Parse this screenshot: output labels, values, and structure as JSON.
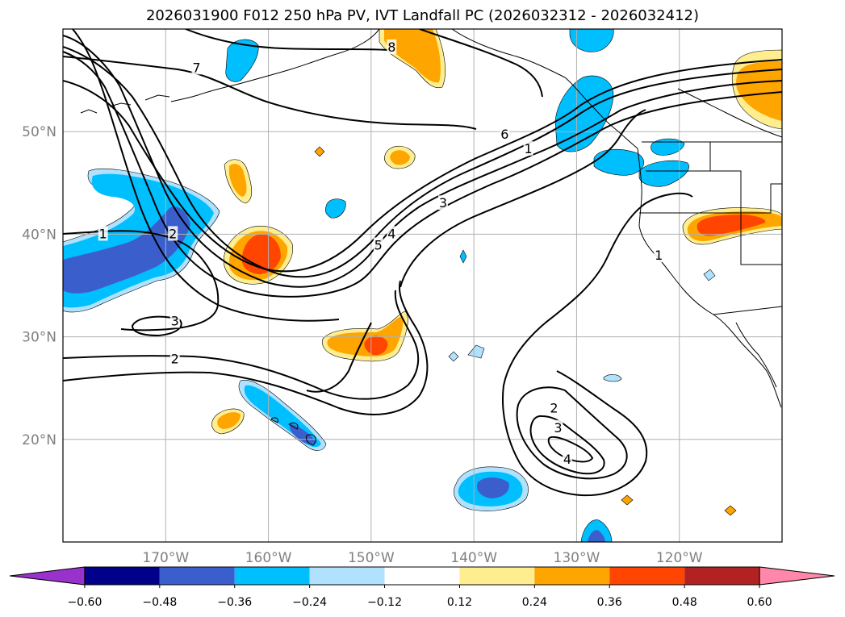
{
  "title": "2026031900 F012 250 hPa PV, IVT Landfall PC (2026032312 - 2026032412)",
  "map": {
    "projection": "equirectangular",
    "lon_range": [
      -180,
      -110
    ],
    "lat_range": [
      10,
      60
    ],
    "lon_ticks": [
      {
        "lon": -170,
        "label": "170°W"
      },
      {
        "lon": -160,
        "label": "160°W"
      },
      {
        "lon": -150,
        "label": "150°W"
      },
      {
        "lon": -140,
        "label": "140°W"
      },
      {
        "lon": -130,
        "label": "130°W"
      },
      {
        "lon": -120,
        "label": "120°W"
      }
    ],
    "lat_ticks": [
      {
        "lat": 20,
        "label": "20°N"
      },
      {
        "lat": 30,
        "label": "30°N"
      },
      {
        "lat": 40,
        "label": "40°N"
      },
      {
        "lat": 50,
        "label": "50°N"
      }
    ],
    "contour_labels": [
      {
        "text": "7",
        "lon": -167,
        "lat": 56.2
      },
      {
        "text": "8",
        "lon": -148,
        "lat": 58.2
      },
      {
        "text": "6",
        "lon": -137,
        "lat": 49.7
      },
      {
        "text": "1",
        "lon": -134.7,
        "lat": 48.3
      },
      {
        "text": "3",
        "lon": -143,
        "lat": 43
      },
      {
        "text": "4",
        "lon": -148,
        "lat": 40
      },
      {
        "text": "5",
        "lon": -149.3,
        "lat": 38.9
      },
      {
        "text": "1",
        "lon": -176.1,
        "lat": 40
      },
      {
        "text": "2",
        "lon": -169.3,
        "lat": 40
      },
      {
        "text": "3",
        "lon": -169.1,
        "lat": 31.5
      },
      {
        "text": "2",
        "lon": -169.1,
        "lat": 27.8
      },
      {
        "text": "1",
        "lon": -122,
        "lat": 37.9
      },
      {
        "text": "2",
        "lon": -132.2,
        "lat": 23
      },
      {
        "text": "3",
        "lon": -131.8,
        "lat": 21.1
      },
      {
        "text": "4",
        "lon": -130.9,
        "lat": 18
      }
    ]
  },
  "colorbar": {
    "ticks": [
      "−0.60",
      "−0.48",
      "−0.36",
      "−0.24",
      "−0.12",
      "0.12",
      "0.24",
      "0.36",
      "0.48",
      "0.60"
    ],
    "colors": [
      "#9932cc",
      "#00008b",
      "#3a5fcd",
      "#00bfff",
      "#b0e2ff",
      "#ffffff",
      "#ffee8f",
      "#ffa500",
      "#ff4500",
      "#b22222",
      "#ff88aa"
    ]
  }
}
